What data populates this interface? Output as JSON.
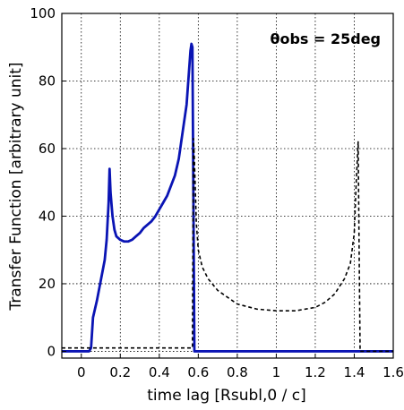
{
  "chart_data": {
    "type": "line",
    "title": "",
    "xlabel": "time lag [Rsubl,0 / c]",
    "ylabel": "Transfer Function [arbitrary unit]",
    "xlim": [
      -0.1,
      1.6
    ],
    "ylim": [
      -2,
      100
    ],
    "xticks": [
      0,
      0.2,
      0.4,
      0.6,
      0.8,
      1,
      1.2,
      1.4,
      1.6
    ],
    "xtick_labels": [
      "0",
      "0.2",
      "0.4",
      "0.6",
      "0.8",
      "1",
      "1.2",
      "1.4",
      "1.6"
    ],
    "yticks": [
      0,
      20,
      40,
      60,
      80,
      100
    ],
    "ytick_labels": [
      "0",
      "20",
      "40",
      "60",
      "80",
      "100"
    ],
    "grid": true,
    "annotation": "θobs = 25deg",
    "series": [
      {
        "style": "solid",
        "color": "#0a14b4",
        "x": [
          -0.1,
          0.04,
          0.05,
          0.06,
          0.08,
          0.1,
          0.12,
          0.13,
          0.14,
          0.145,
          0.15,
          0.16,
          0.17,
          0.18,
          0.2,
          0.22,
          0.24,
          0.26,
          0.28,
          0.3,
          0.32,
          0.34,
          0.36,
          0.38,
          0.4,
          0.42,
          0.44,
          0.46,
          0.48,
          0.5,
          0.52,
          0.54,
          0.55,
          0.56,
          0.565,
          0.57,
          0.575,
          0.58,
          0.6,
          1.0,
          1.42,
          1.6
        ],
        "y": [
          0,
          0,
          1,
          10,
          15,
          21,
          27,
          33,
          44,
          54,
          47,
          40,
          36,
          34,
          33,
          32.5,
          32.5,
          33,
          34,
          35,
          36.5,
          37.5,
          38.5,
          40,
          42,
          44,
          46,
          49,
          52,
          57,
          65,
          73,
          81,
          89,
          91,
          90,
          45,
          0,
          0,
          0,
          0,
          0
        ]
      },
      {
        "style": "dashed",
        "color": "#000000",
        "x": [
          -0.1,
          0.57,
          0.575,
          0.58,
          0.59,
          0.6,
          0.62,
          0.65,
          0.7,
          0.8,
          0.9,
          1.0,
          1.1,
          1.2,
          1.25,
          1.3,
          1.35,
          1.38,
          1.4,
          1.41,
          1.42,
          1.425,
          1.43,
          1.6
        ],
        "y": [
          1,
          1,
          63,
          57,
          38,
          30,
          25,
          21.5,
          18,
          14,
          12.5,
          12,
          12,
          13,
          14.5,
          17,
          21.5,
          26,
          35,
          50,
          62,
          30,
          0,
          0
        ]
      }
    ]
  }
}
